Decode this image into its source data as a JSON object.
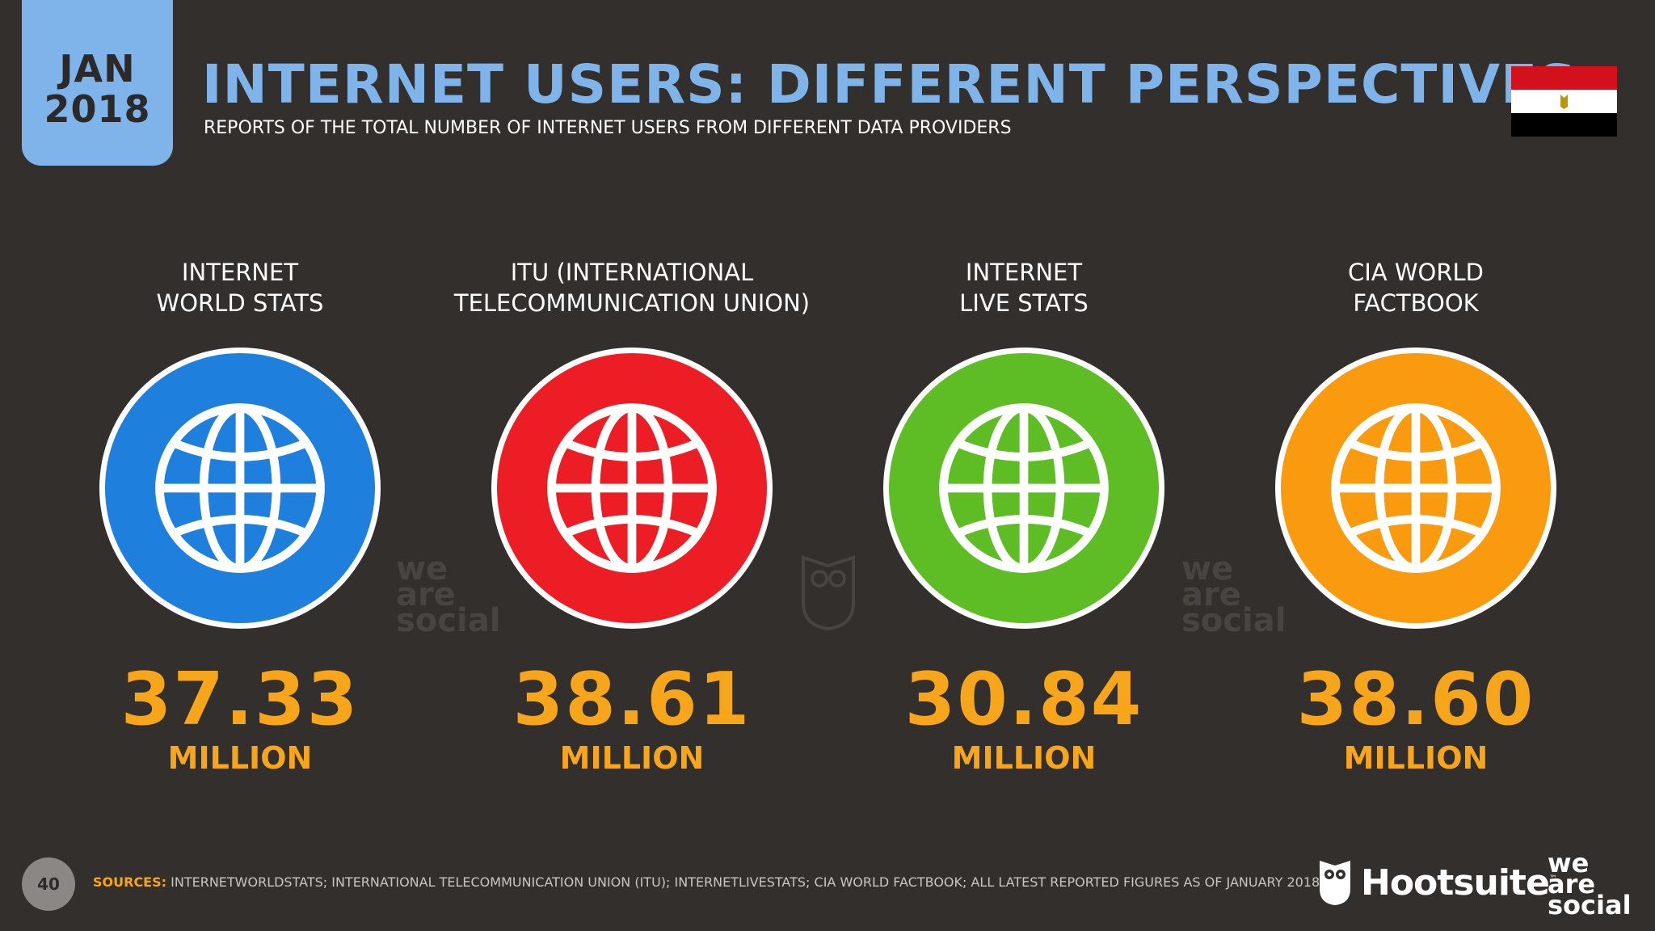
{
  "date": {
    "month": "JAN",
    "year": "2018"
  },
  "title": "INTERNET USERS: DIFFERENT PERSPECTIVES",
  "subtitle": "REPORTS OF THE TOTAL NUMBER OF INTERNET USERS FROM DIFFERENT DATA PROVIDERS",
  "flag": "egypt-flag",
  "providers": [
    {
      "line1": "INTERNET",
      "line2": "WORLD STATS",
      "value": "37.33",
      "unit": "MILLION",
      "color": "#1e7fdc",
      "icon": "globe-icon"
    },
    {
      "line1": "ITU (INTERNATIONAL",
      "line2": "TELECOMMUNICATION UNION)",
      "value": "38.61",
      "unit": "MILLION",
      "color": "#ec1d24",
      "icon": "globe-icon"
    },
    {
      "line1": "INTERNET",
      "line2": "LIVE STATS",
      "value": "30.84",
      "unit": "MILLION",
      "color": "#5ebd25",
      "icon": "globe-icon"
    },
    {
      "line1": "CIA WORLD",
      "line2": "FACTBOOK",
      "value": "38.60",
      "unit": "MILLION",
      "color": "#fa9a0e",
      "icon": "globe-icon"
    }
  ],
  "watermark": {
    "line1": "we",
    "line2": "are",
    "line3": "social"
  },
  "footer": {
    "page_number": "40",
    "sources_label": "SOURCES:",
    "sources_text": "INTERNETWORLDSTATS; INTERNATIONAL TELECOMMUNICATION UNION (ITU); INTERNETLIVESTATS; CIA WORLD FACTBOOK; ALL LATEST REPORTED FIGURES AS OF JANUARY 2018.",
    "brand1": "Hootsuite",
    "brand1_tm": "™",
    "brand2": {
      "line1": "we",
      "line2": "are",
      "line3": "social"
    }
  }
}
